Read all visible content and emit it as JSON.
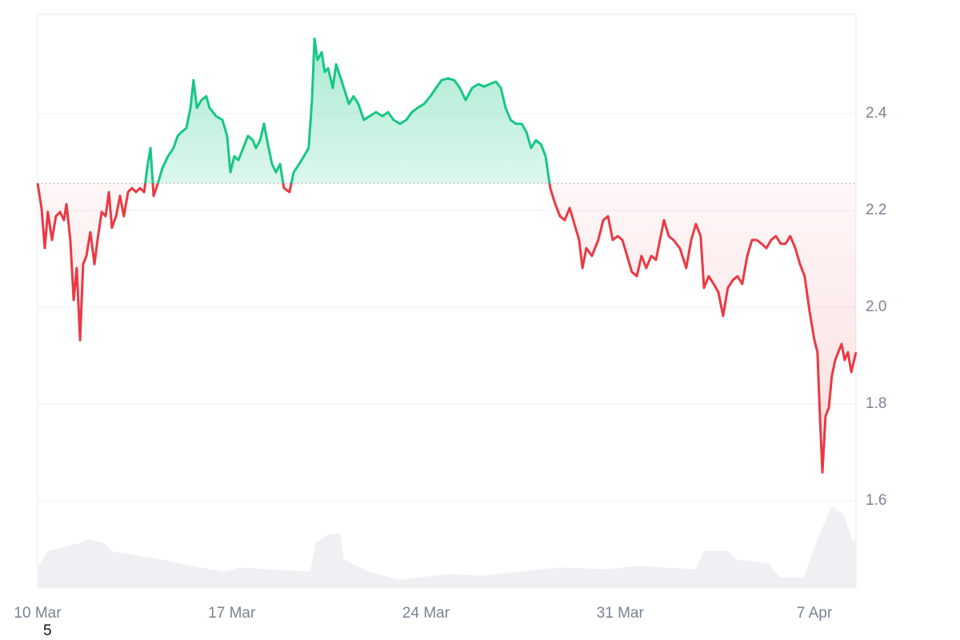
{
  "chart_data": {
    "type": "line",
    "x": [
      0,
      0.14,
      0.26,
      0.37,
      0.52,
      0.66,
      0.81,
      0.95,
      1.04,
      1.18,
      1.3,
      1.41,
      1.53,
      1.64,
      1.76,
      1.9,
      2.05,
      2.16,
      2.31,
      2.45,
      2.57,
      2.68,
      2.83,
      2.97,
      3.11,
      3.26,
      3.4,
      3.55,
      3.69,
      3.84,
      3.95,
      4.07,
      4.18,
      4.33,
      4.5,
      4.7,
      4.9,
      5.05,
      5.19,
      5.36,
      5.51,
      5.62,
      5.74,
      5.91,
      6.08,
      6.2,
      6.43,
      6.66,
      6.83,
      6.95,
      7.09,
      7.24,
      7.41,
      7.58,
      7.76,
      7.87,
      8.02,
      8.16,
      8.3,
      8.45,
      8.59,
      8.74,
      8.88,
      9.08,
      9.23,
      9.43,
      9.6,
      9.77,
      9.89,
      9.98,
      10.09,
      10.24,
      10.35,
      10.47,
      10.64,
      10.76,
      10.9,
      11.04,
      11.22,
      11.39,
      11.56,
      11.76,
      11.97,
      12.2,
      12.43,
      12.63,
      12.83,
      13.06,
      13.29,
      13.49,
      13.7,
      13.93,
      14.16,
      14.36,
      14.56,
      14.79,
      15.02,
      15.22,
      15.43,
      15.66,
      15.89,
      16.09,
      16.29,
      16.52,
      16.7,
      16.87,
      17.05,
      17.24,
      17.45,
      17.62,
      17.79,
      17.96,
      18.14,
      18.31,
      18.48,
      18.66,
      18.83,
      19.0,
      19.18,
      19.35,
      19.52,
      19.64,
      19.78,
      19.98,
      20.21,
      20.39,
      20.56,
      20.73,
      20.91,
      21.08,
      21.25,
      21.42,
      21.6,
      21.77,
      21.94,
      22.12,
      22.29,
      22.46,
      22.58,
      22.75,
      22.92,
      23.15,
      23.38,
      23.56,
      23.73,
      23.9,
      24.02,
      24.19,
      24.37,
      24.54,
      24.71,
      24.88,
      25.06,
      25.23,
      25.4,
      25.58,
      25.75,
      25.92,
      26.1,
      26.27,
      26.44,
      26.61,
      26.79,
      26.96,
      27.13,
      27.31,
      27.48,
      27.65,
      27.83,
      28.0,
      28.11,
      28.2,
      28.29,
      28.4,
      28.52,
      28.63,
      28.75,
      28.86,
      28.98,
      29.09,
      29.21,
      29.33,
      29.5
    ],
    "values": [
      2.256,
      2.205,
      2.122,
      2.197,
      2.139,
      2.188,
      2.197,
      2.18,
      2.213,
      2.139,
      2.015,
      2.081,
      1.932,
      2.089,
      2.106,
      2.155,
      2.089,
      2.139,
      2.197,
      2.188,
      2.238,
      2.164,
      2.188,
      2.23,
      2.188,
      2.238,
      2.246,
      2.238,
      2.246,
      2.238,
      2.288,
      2.329,
      2.23,
      2.255,
      2.288,
      2.312,
      2.329,
      2.354,
      2.362,
      2.37,
      2.412,
      2.469,
      2.412,
      2.428,
      2.436,
      2.412,
      2.395,
      2.387,
      2.354,
      2.279,
      2.312,
      2.304,
      2.329,
      2.354,
      2.345,
      2.329,
      2.345,
      2.379,
      2.337,
      2.296,
      2.279,
      2.296,
      2.246,
      2.238,
      2.279,
      2.296,
      2.312,
      2.329,
      2.428,
      2.555,
      2.511,
      2.527,
      2.486,
      2.494,
      2.453,
      2.502,
      2.478,
      2.453,
      2.42,
      2.436,
      2.42,
      2.387,
      2.395,
      2.403,
      2.395,
      2.403,
      2.387,
      2.379,
      2.387,
      2.403,
      2.412,
      2.42,
      2.436,
      2.453,
      2.469,
      2.473,
      2.469,
      2.453,
      2.428,
      2.453,
      2.461,
      2.456,
      2.461,
      2.466,
      2.453,
      2.412,
      2.387,
      2.379,
      2.379,
      2.362,
      2.329,
      2.345,
      2.337,
      2.312,
      2.246,
      2.213,
      2.188,
      2.18,
      2.205,
      2.172,
      2.139,
      2.081,
      2.122,
      2.106,
      2.139,
      2.18,
      2.188,
      2.139,
      2.147,
      2.139,
      2.106,
      2.073,
      2.064,
      2.106,
      2.081,
      2.106,
      2.098,
      2.147,
      2.18,
      2.147,
      2.139,
      2.122,
      2.081,
      2.139,
      2.172,
      2.147,
      2.04,
      2.064,
      2.048,
      2.031,
      1.982,
      2.04,
      2.056,
      2.064,
      2.048,
      2.106,
      2.139,
      2.139,
      2.131,
      2.122,
      2.139,
      2.147,
      2.131,
      2.131,
      2.147,
      2.122,
      2.089,
      2.064,
      1.99,
      1.932,
      1.907,
      1.775,
      1.659,
      1.775,
      1.792,
      1.858,
      1.891,
      1.907,
      1.924,
      1.891,
      1.907,
      1.866,
      1.907
    ],
    "baseline": 2.256,
    "color_up": "#16c784",
    "color_down": "#ea3943",
    "xlim": [
      0,
      29.5
    ],
    "xticks": [
      {
        "value": 0,
        "label": "10 Mar"
      },
      {
        "value": 7,
        "label": "17 Mar"
      },
      {
        "value": 14,
        "label": "24 Mar"
      },
      {
        "value": 21,
        "label": "31 Mar"
      },
      {
        "value": 28,
        "label": "7 Apr"
      }
    ],
    "ylim": [
      1.42,
      2.605
    ],
    "yticks": [
      1.6,
      1.8,
      {
        "value": 2,
        "label": "2.0"
      },
      2.2,
      2.4
    ],
    "grid": true,
    "volume": {
      "color": "#eef0f3",
      "x": [
        0,
        0.37,
        1.53,
        1.82,
        2.39,
        2.68,
        4.41,
        5.85,
        6.72,
        7.3,
        8.74,
        9.83,
        10.03,
        10.47,
        10.9,
        11.04,
        11.91,
        13.06,
        14.79,
        15.95,
        17.39,
        18.83,
        20.56,
        21.71,
        22.58,
        23.73,
        24.02,
        24.88,
        25.17,
        26.33,
        26.76,
        27.62,
        28.06,
        28.63,
        29.06,
        29.35,
        29.5
      ],
      "values": [
        25,
        45,
        55,
        60,
        55,
        45,
        35,
        25,
        20,
        25,
        22,
        20,
        55,
        65,
        67,
        35,
        20,
        10,
        17,
        15,
        20,
        25,
        23,
        27,
        25,
        23,
        45,
        45,
        35,
        30,
        13,
        13,
        55,
        100,
        90,
        60,
        55
      ],
      "vlim": [
        0,
        700
      ]
    },
    "footnote": "5"
  }
}
